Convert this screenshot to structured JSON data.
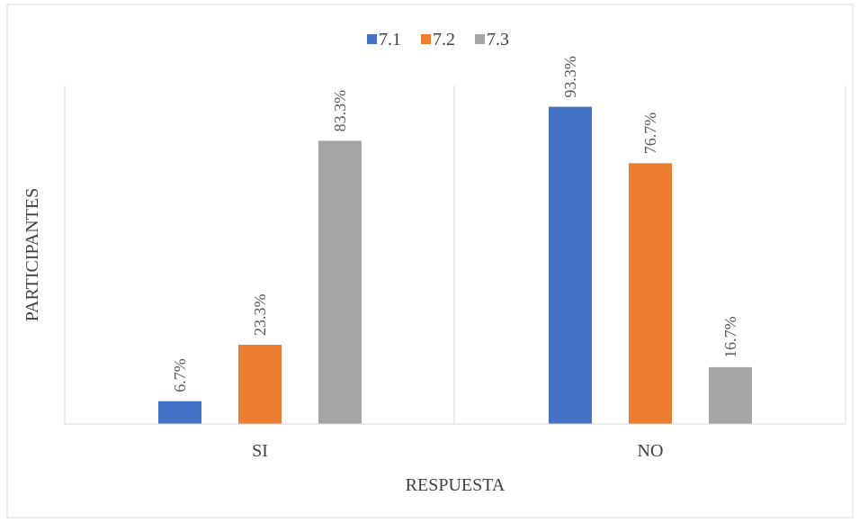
{
  "chart_data": {
    "type": "bar",
    "title": "",
    "xlabel": "RESPUESTA",
    "ylabel": "PARTICIPANTES",
    "categories": [
      "SI",
      "NO"
    ],
    "series": [
      {
        "name": "7.1",
        "values": [
          6.7,
          93.3
        ],
        "color": "#4472C4"
      },
      {
        "name": "7.2",
        "values": [
          23.3,
          76.7
        ],
        "color": "#ED7D31"
      },
      {
        "name": "7.3",
        "values": [
          83.3,
          16.7
        ],
        "color": "#A5A5A5"
      }
    ],
    "data_labels": [
      [
        "6.7%",
        "93.3%"
      ],
      [
        "23.3%",
        "76.7%"
      ],
      [
        "83.3%",
        "16.7%"
      ]
    ],
    "ylim": [
      0,
      100
    ],
    "grid": false,
    "legend_position": "top"
  }
}
